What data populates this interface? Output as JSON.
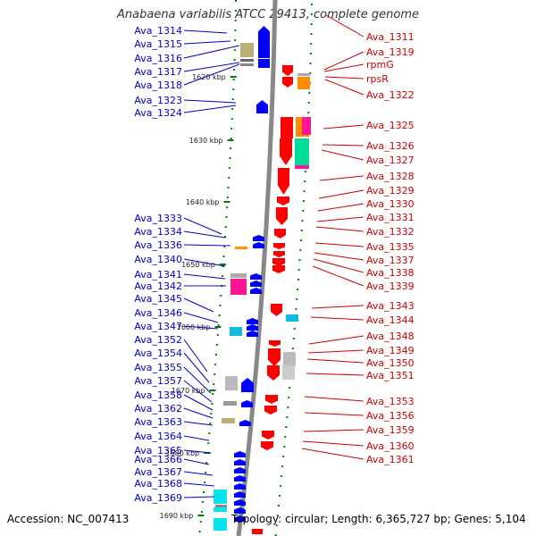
{
  "title": "Anabaena variabilis ATCC 29413, complete genome",
  "accession": "Accession: NC_007413",
  "summary": "Topology: circular; Length: 6,365,727 bp; Genes: 5,104",
  "colors": {
    "forward_label": "#0000cc",
    "reverse_label": "#cc0000",
    "forward_gene": "#0000ff",
    "reverse_gene": "#ff0000",
    "backbone": "#888888",
    "tick": "#008000"
  },
  "kbp_ticks": [
    "1620 kbp",
    "1630 kbp",
    "1640 kbp",
    "1650 kbp",
    "1660 kbp",
    "1670 kbp",
    "1680 kbp",
    "1690 kbp"
  ],
  "left_labels": [
    "Ava_1314",
    "Ava_1315",
    "Ava_1316",
    "Ava_1317",
    "Ava_1318",
    "Ava_1323",
    "Ava_1324",
    "Ava_1333",
    "Ava_1334",
    "Ava_1336",
    "Ava_1340",
    "Ava_1341",
    "Ava_1342",
    "Ava_1345",
    "Ava_1346",
    "Ava_1347",
    "Ava_1352",
    "Ava_1354",
    "Ava_1355",
    "Ava_1357",
    "Ava_1358",
    "Ava_1362",
    "Ava_1363",
    "Ava_1364",
    "Ava_1365",
    "Ava_1366",
    "Ava_1367",
    "Ava_1368",
    "Ava_1369"
  ],
  "right_labels": [
    "Ava_1311",
    "Ava_1319",
    "rpmG",
    "rpsR",
    "Ava_1322",
    "Ava_1325",
    "Ava_1326",
    "Ava_1327",
    "Ava_1328",
    "Ava_1329",
    "Ava_1330",
    "Ava_1331",
    "Ava_1332",
    "Ava_1335",
    "Ava_1337",
    "Ava_1338",
    "Ava_1339",
    "Ava_1343",
    "Ava_1344",
    "Ava_1348",
    "Ava_1349",
    "Ava_1350",
    "Ava_1351",
    "Ava_1353",
    "Ava_1356",
    "Ava_1359",
    "Ava_1360",
    "Ava_1361"
  ]
}
